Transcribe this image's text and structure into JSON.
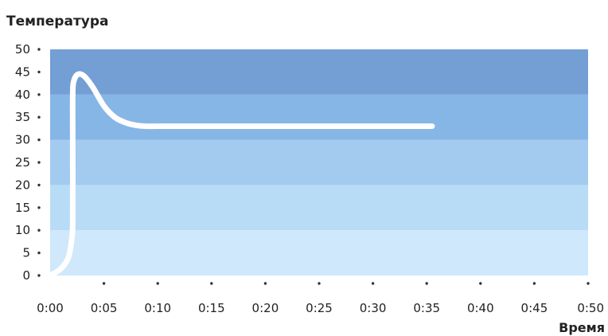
{
  "chart_data": {
    "type": "line",
    "title": "Температура",
    "xlabel": "Время",
    "ylabel": "",
    "xlim": [
      0,
      50
    ],
    "ylim": [
      0,
      50
    ],
    "x_ticks": [
      "0:00",
      "0:05",
      "0:10",
      "0:15",
      "0:20",
      "0:25",
      "0:30",
      "0:35",
      "0:40",
      "0:45",
      "0:50"
    ],
    "y_ticks": [
      "0",
      "5",
      "10",
      "15",
      "20",
      "25",
      "30",
      "35",
      "40",
      "45",
      "50"
    ],
    "bands": [
      {
        "from": 0,
        "to": 10,
        "color": "#cfe8fb"
      },
      {
        "from": 10,
        "to": 20,
        "color": "#b9dcf6"
      },
      {
        "from": 20,
        "to": 30,
        "color": "#a2cbef"
      },
      {
        "from": 30,
        "to": 40,
        "color": "#86b6e6"
      },
      {
        "from": 40,
        "to": 50,
        "color": "#739fd5"
      }
    ],
    "line_color": "#ffffff",
    "series": [
      {
        "points": [
          [
            0,
            0
          ],
          [
            1,
            1.5
          ],
          [
            1.7,
            4
          ],
          [
            2.0,
            8
          ],
          [
            2.1,
            12
          ],
          [
            2.1,
            30
          ],
          [
            2.1,
            40
          ],
          [
            2.2,
            43
          ],
          [
            2.6,
            44.5
          ],
          [
            3.2,
            44
          ],
          [
            4,
            41.5
          ],
          [
            5,
            37.5
          ],
          [
            6,
            35
          ],
          [
            7,
            33.8
          ],
          [
            8,
            33.2
          ],
          [
            9,
            33
          ],
          [
            10,
            33
          ],
          [
            15,
            33
          ],
          [
            20,
            33
          ],
          [
            25,
            33
          ],
          [
            30,
            33
          ],
          [
            35.5,
            33
          ]
        ]
      }
    ]
  }
}
